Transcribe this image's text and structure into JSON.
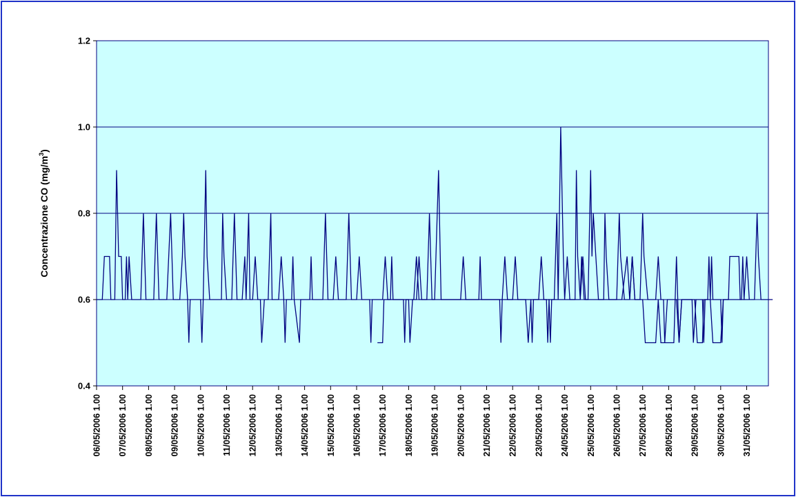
{
  "chart_data": {
    "type": "line",
    "title": "",
    "xlabel": "",
    "ylabel": "Concentrazione CO (mg/m",
    "ylabel_sup": "3",
    "ylabel_close": ")",
    "ylim": [
      0.4,
      1.2
    ],
    "y_ticks": [
      "0.4",
      "0.6",
      "0.8",
      "1.0",
      "1.2"
    ],
    "grid": "horizontal",
    "legend": "none",
    "colors": {
      "plot_bg": "#ccffff",
      "line": "#000080",
      "grid": "#000080",
      "frame": "#1f32c8"
    },
    "x_ticks": [
      "06/05/2006 1.00",
      "07/05/2006 1.00",
      "08/05/2006 1.00",
      "09/05/2006 1.00",
      "10/05/2006 1.00",
      "11/05/2006 1.00",
      "12/05/2006 1.00",
      "13/05/2006 1.00",
      "14/05/2006 1.00",
      "15/05/2006 1.00",
      "16/05/2006 1.00",
      "17/05/2006 1.00",
      "18/05/2006 1.00",
      "19/05/2006 1.00",
      "20/05/2006 1.00",
      "21/05/2006 1.00",
      "22/05/2006 1.00",
      "23/05/2006 1.00",
      "24/05/2006 1.00",
      "25/05/2006 1.00",
      "26/05/2006 1.00",
      "27/05/2006 1.00",
      "28/05/2006 1.00",
      "29/05/2006 1.00",
      "30/05/2006 1.00",
      "31/05/2006 1.00"
    ],
    "series": [
      {
        "values": [
          [
            0.0,
            0.6
          ],
          [
            0.22,
            0.6
          ],
          [
            0.3,
            0.7
          ],
          [
            0.5,
            0.7
          ],
          [
            0.55,
            0.6
          ],
          [
            0.7,
            0.6
          ],
          [
            0.77,
            0.9
          ],
          [
            0.85,
            0.7
          ],
          [
            0.95,
            0.7
          ],
          [
            1.0,
            0.6
          ],
          [
            1.1,
            0.6
          ],
          [
            1.15,
            0.7
          ],
          [
            1.2,
            0.6
          ],
          [
            1.25,
            0.7
          ],
          [
            1.35,
            0.6
          ],
          [
            1.7,
            0.6
          ],
          [
            1.8,
            0.8
          ],
          [
            1.85,
            0.7
          ],
          [
            1.9,
            0.6
          ],
          [
            2.2,
            0.6
          ],
          [
            2.3,
            0.8
          ],
          [
            2.35,
            0.7
          ],
          [
            2.4,
            0.6
          ],
          [
            2.7,
            0.6
          ],
          [
            2.85,
            0.8
          ],
          [
            2.9,
            0.7
          ],
          [
            2.95,
            0.6
          ],
          [
            3.2,
            0.6
          ],
          [
            3.3,
            0.7
          ],
          [
            3.35,
            0.8
          ],
          [
            3.4,
            0.7
          ],
          [
            3.5,
            0.6
          ],
          [
            3.55,
            0.5
          ],
          [
            3.6,
            0.6
          ],
          [
            4.0,
            0.6
          ],
          [
            4.05,
            0.5
          ],
          [
            4.1,
            0.6
          ],
          [
            4.2,
            0.9
          ],
          [
            4.25,
            0.7
          ],
          [
            4.35,
            0.6
          ],
          [
            4.8,
            0.6
          ],
          [
            4.85,
            0.8
          ],
          [
            4.9,
            0.7
          ],
          [
            5.0,
            0.6
          ],
          [
            5.2,
            0.6
          ],
          [
            5.3,
            0.8
          ],
          [
            5.35,
            0.7
          ],
          [
            5.4,
            0.6
          ],
          [
            5.6,
            0.6
          ],
          [
            5.7,
            0.7
          ],
          [
            5.75,
            0.6
          ],
          [
            5.85,
            0.8
          ],
          [
            5.9,
            0.6
          ],
          [
            6.0,
            0.6
          ],
          [
            6.1,
            0.7
          ],
          [
            6.2,
            0.6
          ],
          [
            6.3,
            0.6
          ],
          [
            6.35,
            0.5
          ],
          [
            6.45,
            0.6
          ],
          [
            6.6,
            0.6
          ],
          [
            6.7,
            0.8
          ],
          [
            6.75,
            0.6
          ],
          [
            7.0,
            0.6
          ],
          [
            7.1,
            0.7
          ],
          [
            7.2,
            0.6
          ],
          [
            7.25,
            0.5
          ],
          [
            7.3,
            0.6
          ],
          [
            7.5,
            0.6
          ],
          [
            7.55,
            0.7
          ],
          [
            7.6,
            0.6
          ],
          [
            7.8,
            0.5
          ],
          [
            7.85,
            0.6
          ],
          [
            8.2,
            0.6
          ],
          [
            8.25,
            0.7
          ],
          [
            8.3,
            0.6
          ],
          [
            8.7,
            0.6
          ],
          [
            8.8,
            0.8
          ],
          [
            8.85,
            0.7
          ],
          [
            8.9,
            0.6
          ],
          [
            9.1,
            0.6
          ],
          [
            9.2,
            0.7
          ],
          [
            9.3,
            0.6
          ],
          [
            9.6,
            0.6
          ],
          [
            9.7,
            0.8
          ],
          [
            9.75,
            0.7
          ],
          [
            9.8,
            0.6
          ],
          [
            10.0,
            0.6
          ],
          [
            10.1,
            0.7
          ],
          [
            10.2,
            0.6
          ],
          [
            10.5,
            0.6
          ],
          [
            10.55,
            0.5
          ],
          [
            10.6,
            0.6
          ],
          [
            11.0,
            0.6
          ],
          [
            11.1,
            0.7
          ],
          [
            11.2,
            0.6
          ],
          [
            11.8,
            0.6
          ],
          [
            11.85,
            0.5
          ],
          [
            11.9,
            0.6
          ],
          [
            12.2,
            0.6
          ],
          [
            12.3,
            0.7
          ],
          [
            12.4,
            0.6
          ],
          [
            12.7,
            0.6
          ],
          [
            12.8,
            0.8
          ],
          [
            12.85,
            0.7
          ],
          [
            12.9,
            0.6
          ],
          [
            13.0,
            0.6
          ],
          [
            13.15,
            0.9
          ],
          [
            13.25,
            0.6
          ],
          [
            14.0,
            0.6
          ],
          [
            14.1,
            0.7
          ],
          [
            14.2,
            0.6
          ],
          [
            15.5,
            0.6
          ],
          [
            15.55,
            0.5
          ],
          [
            15.6,
            0.6
          ],
          [
            16.0,
            0.6
          ],
          [
            16.1,
            0.7
          ],
          [
            16.2,
            0.6
          ],
          [
            16.5,
            0.6
          ],
          [
            16.6,
            0.5
          ],
          [
            16.7,
            0.6
          ],
          [
            16.75,
            0.5
          ],
          [
            16.8,
            0.6
          ],
          [
            17.0,
            0.6
          ],
          [
            17.1,
            0.7
          ],
          [
            17.2,
            0.6
          ],
          [
            17.4,
            0.6
          ],
          [
            17.45,
            0.5
          ],
          [
            17.5,
            0.6
          ],
          [
            17.6,
            0.6
          ],
          [
            17.7,
            0.8
          ],
          [
            17.75,
            0.6
          ],
          [
            17.85,
            1.0
          ],
          [
            17.95,
            0.7
          ],
          [
            18.0,
            0.6
          ],
          [
            18.1,
            0.7
          ],
          [
            18.2,
            0.6
          ],
          [
            18.4,
            0.6
          ],
          [
            18.45,
            0.9
          ],
          [
            18.5,
            0.7
          ],
          [
            18.6,
            0.6
          ],
          [
            18.65,
            0.7
          ],
          [
            18.75,
            0.6
          ],
          [
            18.9,
            0.6
          ],
          [
            19.0,
            0.9
          ],
          [
            19.05,
            0.7
          ],
          [
            19.1,
            0.8
          ],
          [
            19.2,
            0.7
          ],
          [
            19.3,
            0.6
          ],
          [
            19.5,
            0.6
          ],
          [
            19.55,
            0.8
          ],
          [
            19.6,
            0.7
          ],
          [
            19.7,
            0.6
          ],
          [
            20.0,
            0.6
          ],
          [
            20.1,
            0.8
          ],
          [
            20.15,
            0.7
          ],
          [
            20.3,
            0.6
          ],
          [
            20.5,
            0.6
          ],
          [
            20.6,
            0.7
          ],
          [
            20.7,
            0.6
          ],
          [
            20.9,
            0.6
          ],
          [
            21.0,
            0.8
          ],
          [
            21.05,
            0.7
          ],
          [
            21.2,
            0.6
          ],
          [
            21.5,
            0.6
          ],
          [
            21.6,
            0.7
          ],
          [
            21.7,
            0.6
          ],
          [
            21.8,
            0.6
          ],
          [
            21.85,
            0.5
          ],
          [
            21.95,
            0.6
          ],
          [
            22.3,
            0.6
          ],
          [
            22.4,
            0.5
          ],
          [
            22.5,
            0.6
          ],
          [
            22.9,
            0.6
          ],
          [
            22.95,
            0.5
          ],
          [
            23.05,
            0.6
          ],
          [
            23.3,
            0.6
          ],
          [
            23.35,
            0.5
          ],
          [
            23.4,
            0.6
          ],
          [
            23.5,
            0.6
          ],
          [
            23.55,
            0.7
          ],
          [
            23.6,
            0.6
          ],
          [
            23.65,
            0.7
          ],
          [
            23.7,
            0.6
          ],
          [
            24.0,
            0.6
          ],
          [
            24.05,
            0.5
          ],
          [
            24.1,
            0.6
          ],
          [
            24.8,
            0.6
          ],
          [
            24.85,
            0.7
          ],
          [
            24.9,
            0.6
          ],
          [
            25.3,
            0.6
          ],
          [
            25.4,
            0.8
          ],
          [
            25.45,
            0.7
          ],
          [
            25.55,
            0.6
          ],
          [
            26.0,
            0.6
          ]
        ],
        "secondary": [
          [
            10.8,
            0.5
          ],
          [
            11.0,
            0.5
          ],
          [
            11.05,
            0.6
          ],
          [
            11.3,
            0.6
          ],
          [
            11.35,
            0.7
          ],
          [
            11.4,
            0.6
          ],
          [
            11.6,
            0.6
          ],
          [
            12.0,
            0.6
          ],
          [
            12.05,
            0.5
          ],
          [
            12.15,
            0.6
          ],
          [
            12.3,
            0.6
          ],
          [
            12.4,
            0.7
          ],
          [
            12.5,
            0.6
          ],
          [
            13.8,
            0.6
          ],
          [
            13.9,
            0.6
          ],
          [
            14.4,
            0.6
          ],
          [
            14.7,
            0.6
          ],
          [
            14.75,
            0.7
          ],
          [
            14.8,
            0.6
          ],
          [
            15.0,
            0.6
          ],
          [
            15.6,
            0.6
          ],
          [
            15.7,
            0.7
          ],
          [
            15.8,
            0.6
          ],
          [
            16.0,
            0.6
          ],
          [
            16.3,
            0.6
          ],
          [
            16.6,
            0.6
          ],
          [
            17.3,
            0.6
          ],
          [
            17.35,
            0.5
          ],
          [
            17.4,
            0.6
          ],
          [
            17.6,
            0.6
          ],
          [
            18.6,
            0.6
          ],
          [
            18.7,
            0.7
          ],
          [
            18.8,
            0.6
          ],
          [
            19.8,
            0.6
          ],
          [
            20.2,
            0.6
          ],
          [
            20.4,
            0.7
          ],
          [
            20.5,
            0.6
          ],
          [
            20.6,
            0.7
          ],
          [
            20.7,
            0.6
          ],
          [
            21.0,
            0.6
          ],
          [
            21.1,
            0.5
          ],
          [
            21.5,
            0.5
          ],
          [
            21.6,
            0.6
          ],
          [
            21.7,
            0.5
          ],
          [
            22.0,
            0.5
          ],
          [
            22.2,
            0.5
          ],
          [
            22.25,
            0.6
          ],
          [
            22.3,
            0.7
          ],
          [
            22.35,
            0.6
          ],
          [
            22.4,
            0.5
          ],
          [
            22.5,
            0.6
          ],
          [
            23.0,
            0.6
          ],
          [
            23.1,
            0.5
          ],
          [
            23.3,
            0.5
          ],
          [
            23.35,
            0.6
          ],
          [
            23.6,
            0.6
          ],
          [
            23.7,
            0.5
          ],
          [
            24.0,
            0.5
          ],
          [
            24.1,
            0.6
          ],
          [
            24.3,
            0.6
          ],
          [
            24.35,
            0.7
          ],
          [
            24.4,
            0.7
          ],
          [
            24.7,
            0.7
          ],
          [
            24.75,
            0.6
          ],
          [
            24.9,
            0.6
          ],
          [
            25.0,
            0.7
          ],
          [
            25.1,
            0.6
          ]
        ]
      }
    ]
  }
}
